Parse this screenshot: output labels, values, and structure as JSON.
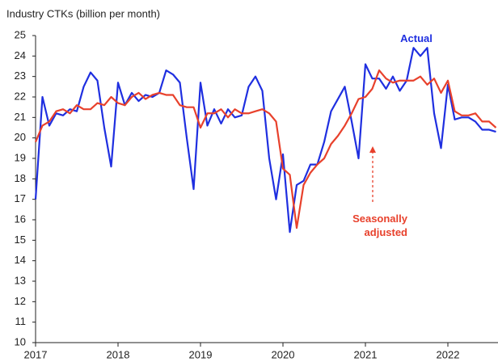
{
  "chart_data": {
    "type": "line",
    "y_label": "Industry CTKs (billion per month)",
    "categories": [
      "2017",
      null,
      null,
      null,
      null,
      null,
      null,
      null,
      null,
      null,
      null,
      null,
      "2018",
      null,
      null,
      null,
      null,
      null,
      null,
      null,
      null,
      null,
      null,
      null,
      "2019",
      null,
      null,
      null,
      null,
      null,
      null,
      null,
      null,
      null,
      null,
      null,
      "2020",
      null,
      null,
      null,
      null,
      null,
      null,
      null,
      null,
      null,
      null,
      null,
      "2021",
      null,
      null,
      null,
      null,
      null,
      null,
      null,
      null,
      null,
      null,
      null,
      "2022",
      null,
      null,
      null,
      null,
      null,
      null,
      null
    ],
    "series": [
      {
        "name": "Actual",
        "color": "#1f2fe0",
        "values": [
          17.0,
          22.0,
          20.6,
          21.2,
          21.1,
          21.4,
          21.3,
          22.5,
          23.2,
          22.8,
          20.5,
          18.6,
          22.7,
          21.6,
          22.2,
          21.8,
          22.1,
          22.0,
          22.2,
          23.3,
          23.1,
          22.7,
          20.0,
          17.5,
          22.7,
          20.6,
          21.4,
          20.7,
          21.4,
          21.0,
          21.1,
          22.5,
          23.0,
          22.3,
          19.0,
          17.0,
          19.2,
          15.4,
          17.7,
          17.9,
          18.7,
          18.7,
          19.8,
          21.3,
          21.9,
          22.5,
          20.8,
          19.0,
          23.6,
          22.9,
          22.9,
          22.4,
          23.0,
          22.3,
          22.8,
          24.4,
          24.0,
          24.4,
          21.2,
          19.5,
          22.6,
          20.9,
          21.0,
          21.0,
          20.8,
          20.4,
          20.4,
          20.3
        ]
      },
      {
        "name": "Seasonally adjusted",
        "color": "#e8412c",
        "values": [
          19.8,
          20.6,
          20.8,
          21.3,
          21.4,
          21.2,
          21.6,
          21.4,
          21.4,
          21.7,
          21.6,
          22.0,
          21.7,
          21.6,
          22.0,
          22.2,
          21.9,
          22.1,
          22.2,
          22.1,
          22.1,
          21.6,
          21.5,
          21.5,
          20.5,
          21.2,
          21.2,
          21.4,
          21.0,
          21.4,
          21.2,
          21.2,
          21.3,
          21.4,
          21.2,
          20.8,
          18.5,
          18.2,
          15.6,
          17.7,
          18.3,
          18.7,
          19.0,
          19.7,
          20.1,
          20.6,
          21.2,
          21.9,
          22.0,
          22.4,
          23.3,
          22.9,
          22.7,
          22.8,
          22.8,
          22.8,
          23.0,
          22.6,
          22.9,
          22.2,
          22.8,
          21.3,
          21.1,
          21.1,
          21.2,
          20.8,
          20.8,
          20.5
        ]
      }
    ],
    "ylim": [
      10,
      25
    ],
    "yticks": [
      10,
      11,
      12,
      13,
      14,
      15,
      16,
      17,
      18,
      19,
      20,
      21,
      22,
      23,
      24,
      25
    ],
    "grid": false
  }
}
